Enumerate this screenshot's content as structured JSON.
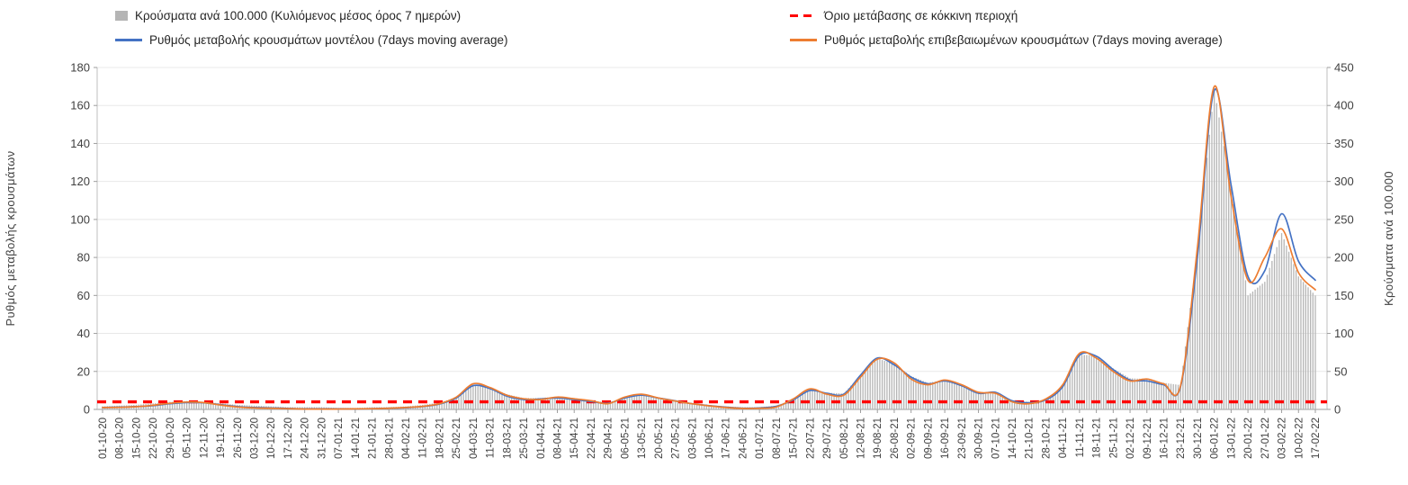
{
  "legend": {
    "items": [
      {
        "label": "Κρούσματα ανά 100.000 (Κυλιόμενος μέσος όρος 7 ημερών)",
        "style": "bar",
        "color": "#b5b5b5"
      },
      {
        "label": "Όριο μετάβασης σε κόκκινη περιοχή",
        "style": "dashed",
        "color": "#ff0000"
      },
      {
        "label": "Ρυθμός μεταβολής κρουσμάτων μοντέλου (7days moving average)",
        "style": "line",
        "color": "#4472c4"
      },
      {
        "label": "Ρυθμός μεταβολής επιβεβαιωμένων κρουσμάτων (7days moving average)",
        "style": "line",
        "color": "#ed7d31"
      }
    ]
  },
  "chart_data": {
    "type": "combo-bar-line",
    "categories": [
      "01-10-20",
      "08-10-20",
      "15-10-20",
      "22-10-20",
      "29-10-20",
      "05-11-20",
      "12-11-20",
      "19-11-20",
      "26-11-20",
      "03-12-20",
      "10-12-20",
      "17-12-20",
      "24-12-20",
      "31-12-20",
      "07-01-21",
      "14-01-21",
      "21-01-21",
      "28-01-21",
      "04-02-21",
      "11-02-21",
      "18-02-21",
      "25-02-21",
      "04-03-21",
      "11-03-21",
      "18-03-21",
      "25-03-21",
      "01-04-21",
      "08-04-21",
      "15-04-21",
      "22-04-21",
      "29-04-21",
      "06-05-21",
      "13-05-21",
      "20-05-21",
      "27-05-21",
      "03-06-21",
      "10-06-21",
      "17-06-21",
      "24-06-21",
      "01-07-21",
      "08-07-21",
      "15-07-21",
      "22-07-21",
      "29-07-21",
      "05-08-21",
      "12-08-21",
      "19-08-21",
      "26-08-21",
      "02-09-21",
      "09-09-21",
      "16-09-21",
      "23-09-21",
      "30-09-21",
      "07-10-21",
      "14-10-21",
      "21-10-21",
      "28-10-21",
      "04-11-21",
      "11-11-21",
      "18-11-21",
      "25-11-21",
      "02-12-21",
      "09-12-21",
      "16-12-21",
      "23-12-21",
      "30-12-21",
      "06-01-22",
      "13-01-22",
      "20-01-22",
      "27-01-22",
      "03-02-22",
      "10-02-22",
      "17-02-22"
    ],
    "series": [
      {
        "name": "Κρούσματα ανά 100.000 (Κυλιόμενος μέσος όρος 7 ημερών)",
        "type": "bar",
        "axis": "right",
        "color": "#b5b5b5",
        "values": [
          4,
          5,
          6,
          8,
          10,
          11,
          10,
          8,
          6,
          5,
          4,
          3,
          3,
          3,
          2,
          2,
          3,
          3,
          4,
          6,
          9,
          16,
          32,
          29,
          20,
          15,
          15,
          17,
          15,
          12,
          9,
          15,
          19,
          15,
          12,
          8,
          6,
          4,
          3,
          3,
          5,
          13,
          26,
          22,
          21,
          45,
          67,
          60,
          44,
          35,
          39,
          32,
          22,
          23,
          12,
          10,
          13,
          30,
          72,
          71,
          54,
          41,
          40,
          35,
          32,
          210,
          422,
          290,
          150,
          168,
          232,
          175,
          150
        ]
      },
      {
        "name": "Ρυθμός μεταβολής κρουσμάτων μοντέλου (7days moving average)",
        "type": "line",
        "axis": "left",
        "color": "#4472c4",
        "values": [
          1.0,
          1.2,
          1.5,
          2.0,
          3.0,
          3.6,
          3.5,
          2.5,
          1.5,
          1.0,
          0.8,
          0.5,
          0.3,
          0.3,
          0.3,
          0.3,
          0.4,
          0.6,
          0.9,
          1.5,
          2.8,
          6.0,
          12.5,
          11.0,
          7.0,
          5.2,
          5.5,
          6.0,
          5.2,
          4.2,
          3.2,
          6.0,
          7.5,
          6.0,
          4.5,
          3.0,
          2.0,
          1.2,
          0.6,
          0.8,
          1.6,
          5.0,
          10.0,
          8.5,
          8.0,
          18.0,
          27.0,
          23.5,
          17.0,
          13.5,
          15.0,
          12.5,
          8.5,
          9.0,
          4.5,
          3.5,
          5.0,
          12.0,
          28.5,
          28.0,
          21.0,
          15.5,
          15.0,
          13.0,
          12.0,
          80.0,
          168.0,
          118.0,
          70.0,
          73.0,
          103.0,
          78.0,
          68.0
        ]
      },
      {
        "name": "Ρυθμός μεταβολής επιβεβαιωμένων κρουσμάτων (7days moving average)",
        "type": "line",
        "axis": "left",
        "color": "#ed7d31",
        "values": [
          1.0,
          1.1,
          1.4,
          2.2,
          3.2,
          3.9,
          3.6,
          2.3,
          1.3,
          0.8,
          0.6,
          0.4,
          0.2,
          0.2,
          0.2,
          0.3,
          0.4,
          0.6,
          1.0,
          1.6,
          3.0,
          6.5,
          13.5,
          11.5,
          7.5,
          5.6,
          5.2,
          6.5,
          5.6,
          4.6,
          3.0,
          6.5,
          8.0,
          6.0,
          4.4,
          3.0,
          1.9,
          1.0,
          0.5,
          0.6,
          1.3,
          5.5,
          10.8,
          8.0,
          7.5,
          17.0,
          26.5,
          24.5,
          16.0,
          13.0,
          15.5,
          13.0,
          9.0,
          8.5,
          4.0,
          3.0,
          5.5,
          13.0,
          29.5,
          27.0,
          20.0,
          15.0,
          16.0,
          13.5,
          12.5,
          85.0,
          170.0,
          112.0,
          68.0,
          80.0,
          95.0,
          72.0,
          63.0
        ]
      },
      {
        "name": "Όριο μετάβασης σε κόκκινη περιοχή",
        "type": "threshold",
        "axis": "left",
        "color": "#ff0000",
        "value": 4
      }
    ],
    "left_axis": {
      "label": "Ρυθμός μεταβολής κρουσμάτων",
      "min": 0,
      "max": 180,
      "step": 20
    },
    "right_axis": {
      "label": "Κρούσματα ανά 100.000",
      "min": 0,
      "max": 450,
      "step": 50
    },
    "grid": true,
    "legend_position": "top"
  }
}
